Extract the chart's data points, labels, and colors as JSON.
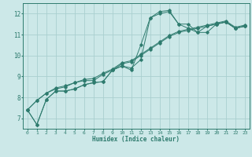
{
  "title": "",
  "xlabel": "Humidex (Indice chaleur)",
  "xlim": [
    -0.5,
    23.5
  ],
  "ylim": [
    6.5,
    12.5
  ],
  "xticks": [
    0,
    1,
    2,
    3,
    4,
    5,
    6,
    7,
    8,
    9,
    10,
    11,
    12,
    13,
    14,
    15,
    16,
    17,
    18,
    19,
    20,
    21,
    22,
    23
  ],
  "yticks": [
    7,
    8,
    9,
    10,
    11,
    12
  ],
  "bg_color": "#cce8e8",
  "line_color": "#2e7b6e",
  "grid_color": "#aacfcf",
  "series": [
    [
      7.4,
      6.7,
      7.9,
      8.3,
      8.3,
      8.4,
      8.6,
      8.7,
      8.75,
      9.3,
      9.5,
      9.3,
      10.5,
      11.8,
      12.1,
      12.15,
      11.5,
      11.3,
      11.1,
      11.1,
      11.5,
      11.6,
      11.3,
      11.4
    ],
    [
      7.4,
      6.7,
      7.9,
      8.3,
      8.3,
      8.4,
      8.6,
      8.7,
      8.75,
      9.3,
      9.5,
      9.4,
      9.8,
      11.8,
      12.0,
      12.1,
      11.5,
      11.5,
      11.1,
      11.4,
      11.5,
      11.6,
      11.3,
      11.4
    ],
    [
      7.4,
      7.85,
      8.2,
      8.4,
      8.5,
      8.7,
      8.8,
      8.8,
      9.1,
      9.3,
      9.6,
      9.7,
      10.0,
      10.3,
      10.6,
      10.9,
      11.1,
      11.2,
      11.3,
      11.4,
      11.5,
      11.6,
      11.3,
      11.4
    ],
    [
      7.4,
      7.85,
      8.2,
      8.45,
      8.55,
      8.7,
      8.85,
      8.9,
      9.15,
      9.35,
      9.65,
      9.75,
      10.05,
      10.35,
      10.65,
      10.95,
      11.15,
      11.25,
      11.35,
      11.45,
      11.55,
      11.65,
      11.35,
      11.45
    ]
  ]
}
